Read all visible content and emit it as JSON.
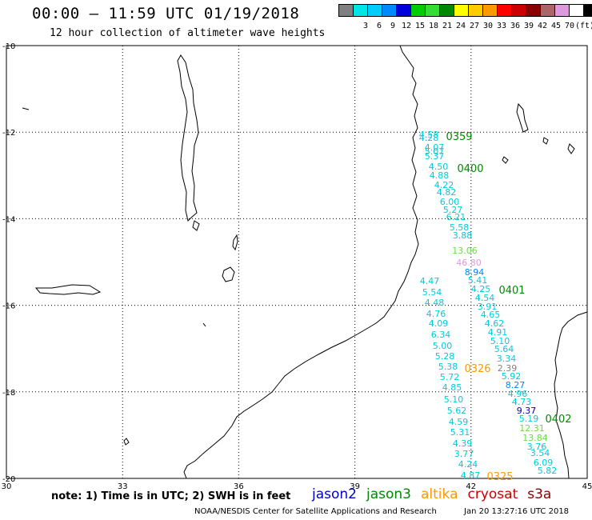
{
  "header": {
    "title": "00:00 – 11:59 UTC 01/19/2018",
    "subtitle": "12 hour collection of altimeter wave heights"
  },
  "color_scale": {
    "unit_label": "(ft)",
    "bins": [
      {
        "label": "",
        "color": "#808080"
      },
      {
        "label": "3",
        "color": "#00e6e6"
      },
      {
        "label": "6",
        "color": "#00ccff"
      },
      {
        "label": "9",
        "color": "#0088ff"
      },
      {
        "label": "12",
        "color": "#0000dd"
      },
      {
        "label": "15",
        "color": "#00cc00"
      },
      {
        "label": "18",
        "color": "#33dd33"
      },
      {
        "label": "21",
        "color": "#008800"
      },
      {
        "label": "24",
        "color": "#ffff00"
      },
      {
        "label": "27",
        "color": "#ffcc00"
      },
      {
        "label": "30",
        "color": "#ff9900"
      },
      {
        "label": "33",
        "color": "#ff0000"
      },
      {
        "label": "36",
        "color": "#cc0000"
      },
      {
        "label": "39",
        "color": "#880000"
      },
      {
        "label": "42",
        "color": "#aa6666"
      },
      {
        "label": "45",
        "color": "#dd99dd"
      },
      {
        "label": "70",
        "color": "#ffffff"
      },
      {
        "label": "",
        "color": "#000000"
      }
    ]
  },
  "axes": {
    "lat_labels": [
      "-10",
      "-12",
      "-14",
      "-16",
      "-18",
      "-20"
    ],
    "lon_labels": [
      "30",
      "33",
      "36",
      "39",
      "42",
      "45"
    ]
  },
  "passes": [
    {
      "time": "0359",
      "color": "#008800"
    },
    {
      "time": "0400",
      "color": "#008800"
    },
    {
      "time": "0401",
      "color": "#008800"
    },
    {
      "time": "0402",
      "color": "#008800"
    },
    {
      "time": "0326",
      "color": "#ff9900"
    },
    {
      "time": "0325",
      "color": "#ff9900"
    }
  ],
  "observations": [
    {
      "v": "4.58",
      "c": "#00ccdd"
    },
    {
      "v": "4.28",
      "c": "#00ccdd"
    },
    {
      "v": "4.07",
      "c": "#00ccdd"
    },
    {
      "v": "5.07",
      "c": "#00ccdd"
    },
    {
      "v": "5.37",
      "c": "#00ccdd"
    },
    {
      "v": "4.50",
      "c": "#00ccdd"
    },
    {
      "v": "4.88",
      "c": "#00ccdd"
    },
    {
      "v": "4.22",
      "c": "#00ccdd"
    },
    {
      "v": "4.82",
      "c": "#00ccdd"
    },
    {
      "v": "6.00",
      "c": "#00ccdd"
    },
    {
      "v": "5.27",
      "c": "#00ccdd"
    },
    {
      "v": "6.21",
      "c": "#00ccdd"
    },
    {
      "v": "5.58",
      "c": "#00ccdd"
    },
    {
      "v": "3.88",
      "c": "#00ccdd"
    },
    {
      "v": "13.06",
      "c": "#66dd44"
    },
    {
      "v": "46.80",
      "c": "#dd99dd"
    },
    {
      "v": "8.94",
      "c": "#0088ff"
    },
    {
      "v": "5.41",
      "c": "#00ccdd"
    },
    {
      "v": "4.25",
      "c": "#00ccdd"
    },
    {
      "v": "4.54",
      "c": "#00ccdd"
    },
    {
      "v": "3.91",
      "c": "#00ccdd"
    },
    {
      "v": "4.65",
      "c": "#00ccdd"
    },
    {
      "v": "4.62",
      "c": "#00ccdd"
    },
    {
      "v": "4.91",
      "c": "#00ccdd"
    },
    {
      "v": "5.10",
      "c": "#00ccdd"
    },
    {
      "v": "5.64",
      "c": "#00ccdd"
    },
    {
      "v": "3.34",
      "c": "#00ccdd"
    },
    {
      "v": "2.39",
      "c": "#808080"
    },
    {
      "v": "5.92",
      "c": "#00ccdd"
    },
    {
      "v": "8.27",
      "c": "#0088ff"
    },
    {
      "v": "4.96",
      "c": "#00ccdd"
    },
    {
      "v": "4.73",
      "c": "#00ccdd"
    },
    {
      "v": "9.37",
      "c": "#0000aa"
    },
    {
      "v": "5.19",
      "c": "#00ccdd"
    },
    {
      "v": "12.31",
      "c": "#66dd44"
    },
    {
      "v": "13.84",
      "c": "#66dd44"
    },
    {
      "v": "3.76",
      "c": "#00ccdd"
    },
    {
      "v": "3.54",
      "c": "#00ccdd"
    },
    {
      "v": "6.09",
      "c": "#00ccdd"
    },
    {
      "v": "5.82",
      "c": "#00ccdd"
    },
    {
      "v": "4.47",
      "c": "#00ccdd"
    },
    {
      "v": "5.54",
      "c": "#00ccdd"
    },
    {
      "v": "4.48",
      "c": "#00ccdd"
    },
    {
      "v": "4.76",
      "c": "#00ccdd"
    },
    {
      "v": "4.09",
      "c": "#00ccdd"
    },
    {
      "v": "6.34",
      "c": "#00ccdd"
    },
    {
      "v": "5.00",
      "c": "#00ccdd"
    },
    {
      "v": "5.28",
      "c": "#00ccdd"
    },
    {
      "v": "5.38",
      "c": "#00ccdd"
    },
    {
      "v": "5.72",
      "c": "#00ccdd"
    },
    {
      "v": "4.85",
      "c": "#00ccdd"
    },
    {
      "v": "5.10",
      "c": "#00ccdd"
    },
    {
      "v": "5.62",
      "c": "#00ccdd"
    },
    {
      "v": "4.59",
      "c": "#00ccdd"
    },
    {
      "v": "5.31",
      "c": "#00ccdd"
    },
    {
      "v": "4.39",
      "c": "#00ccdd"
    },
    {
      "v": "3.77",
      "c": "#00ccdd"
    },
    {
      "v": "4.24",
      "c": "#00ccdd"
    },
    {
      "v": "4.87",
      "c": "#00ccdd"
    }
  ],
  "footer": {
    "note": "note: 1) Time is in UTC; 2) SWH is in feet",
    "satellites": [
      {
        "name": "jason2",
        "color": "#0000cc"
      },
      {
        "name": "jason3",
        "color": "#008800"
      },
      {
        "name": "altika",
        "color": "#ff9900"
      },
      {
        "name": "cryosat",
        "color": "#cc0000"
      },
      {
        "name": "s3a",
        "color": "#880000"
      }
    ],
    "credit": "NOAA/NESDIS Center for Satellite Applications and Research",
    "timestamp": "Jan 20 13:27:16 UTC 2018"
  }
}
